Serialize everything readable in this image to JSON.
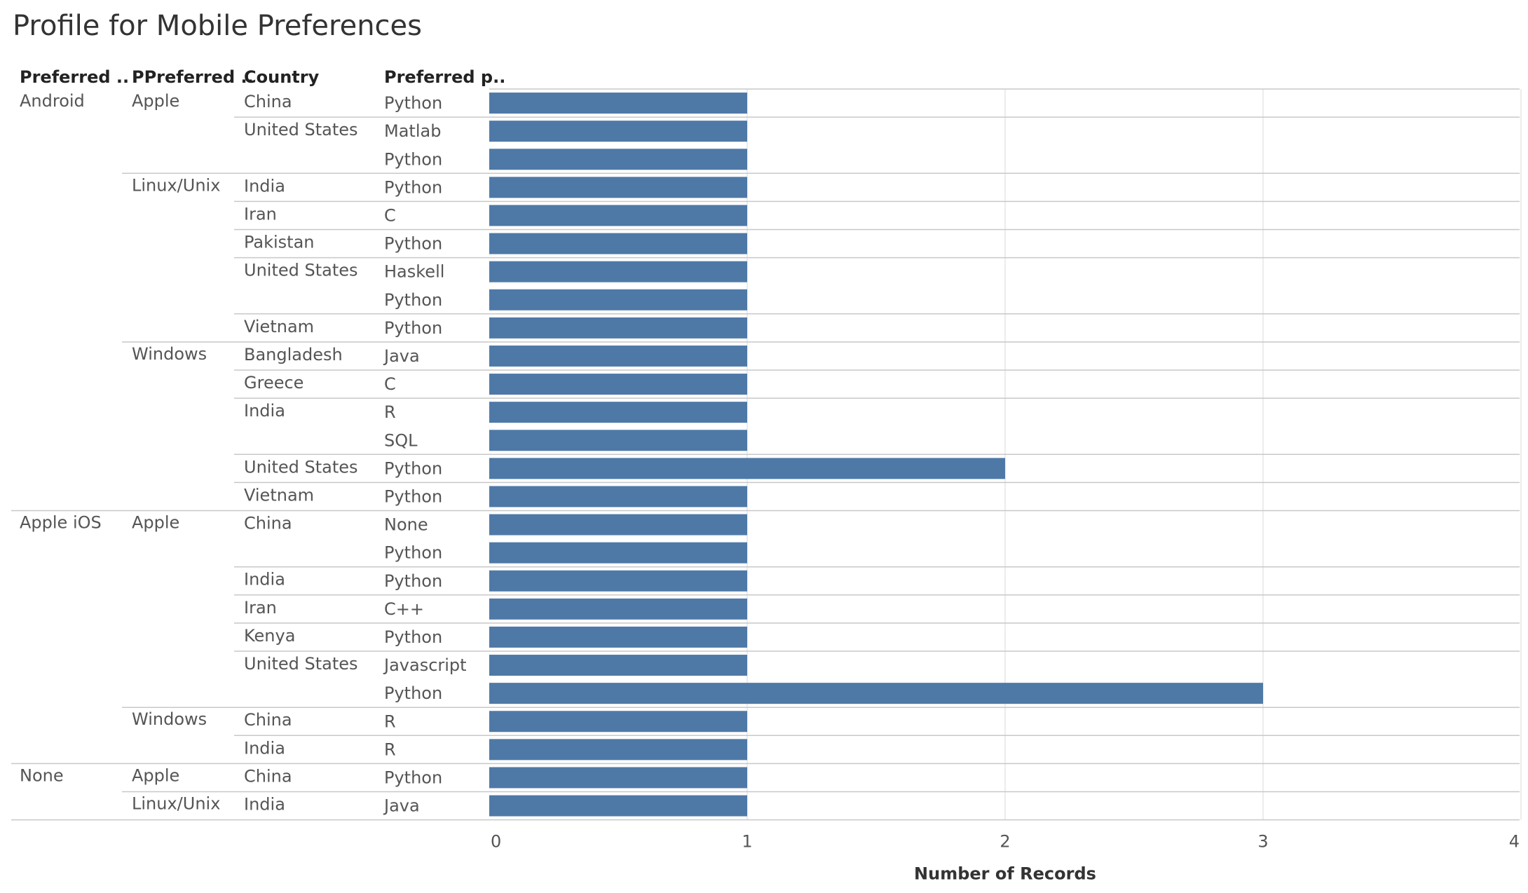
{
  "title": "Profile for Mobile Preferences",
  "headers": {
    "col1": "Preferred ..",
    "col2": "PPreferred ..",
    "col3": "Country",
    "col4": "Preferred p.."
  },
  "bar_color": "#4e79a7",
  "chart_data": {
    "type": "bar",
    "orientation": "horizontal",
    "title": "Profile for Mobile Preferences",
    "xlabel": "Number of Records",
    "xlim": [
      0,
      4
    ],
    "xticks": [
      0,
      1,
      2,
      3,
      4
    ],
    "grid": true,
    "rows": [
      {
        "mobile": "Android",
        "os": "Apple",
        "country": "China",
        "language": "Python",
        "value": 1
      },
      {
        "mobile": "Android",
        "os": "Apple",
        "country": "United States",
        "language": "Matlab",
        "value": 1
      },
      {
        "mobile": "Android",
        "os": "Apple",
        "country": "United States",
        "language": "Python",
        "value": 1
      },
      {
        "mobile": "Android",
        "os": "Linux/Unix",
        "country": "India",
        "language": "Python",
        "value": 1
      },
      {
        "mobile": "Android",
        "os": "Linux/Unix",
        "country": "Iran",
        "language": "C",
        "value": 1
      },
      {
        "mobile": "Android",
        "os": "Linux/Unix",
        "country": "Pakistan",
        "language": "Python",
        "value": 1
      },
      {
        "mobile": "Android",
        "os": "Linux/Unix",
        "country": "United States",
        "language": "Haskell",
        "value": 1
      },
      {
        "mobile": "Android",
        "os": "Linux/Unix",
        "country": "United States",
        "language": "Python",
        "value": 1
      },
      {
        "mobile": "Android",
        "os": "Linux/Unix",
        "country": "Vietnam",
        "language": "Python",
        "value": 1
      },
      {
        "mobile": "Android",
        "os": "Windows",
        "country": "Bangladesh",
        "language": "Java",
        "value": 1
      },
      {
        "mobile": "Android",
        "os": "Windows",
        "country": "Greece",
        "language": "C",
        "value": 1
      },
      {
        "mobile": "Android",
        "os": "Windows",
        "country": "India",
        "language": "R",
        "value": 1
      },
      {
        "mobile": "Android",
        "os": "Windows",
        "country": "India",
        "language": "SQL",
        "value": 1
      },
      {
        "mobile": "Android",
        "os": "Windows",
        "country": "United States",
        "language": "Python",
        "value": 2
      },
      {
        "mobile": "Android",
        "os": "Windows",
        "country": "Vietnam",
        "language": "Python",
        "value": 1
      },
      {
        "mobile": "Apple iOS",
        "os": "Apple",
        "country": "China",
        "language": "None",
        "value": 1
      },
      {
        "mobile": "Apple iOS",
        "os": "Apple",
        "country": "China",
        "language": "Python",
        "value": 1
      },
      {
        "mobile": "Apple iOS",
        "os": "Apple",
        "country": "India",
        "language": "Python",
        "value": 1
      },
      {
        "mobile": "Apple iOS",
        "os": "Apple",
        "country": "Iran",
        "language": "C++",
        "value": 1
      },
      {
        "mobile": "Apple iOS",
        "os": "Apple",
        "country": "Kenya",
        "language": "Python",
        "value": 1
      },
      {
        "mobile": "Apple iOS",
        "os": "Apple",
        "country": "United States",
        "language": "Javascript",
        "value": 1
      },
      {
        "mobile": "Apple iOS",
        "os": "Apple",
        "country": "United States",
        "language": "Python",
        "value": 3
      },
      {
        "mobile": "Apple iOS",
        "os": "Windows",
        "country": "China",
        "language": "R",
        "value": 1
      },
      {
        "mobile": "Apple iOS",
        "os": "Windows",
        "country": "India",
        "language": "R",
        "value": 1
      },
      {
        "mobile": "None",
        "os": "Apple",
        "country": "China",
        "language": "Python",
        "value": 1
      },
      {
        "mobile": "None",
        "os": "Linux/Unix",
        "country": "India",
        "language": "Java",
        "value": 1
      }
    ]
  }
}
